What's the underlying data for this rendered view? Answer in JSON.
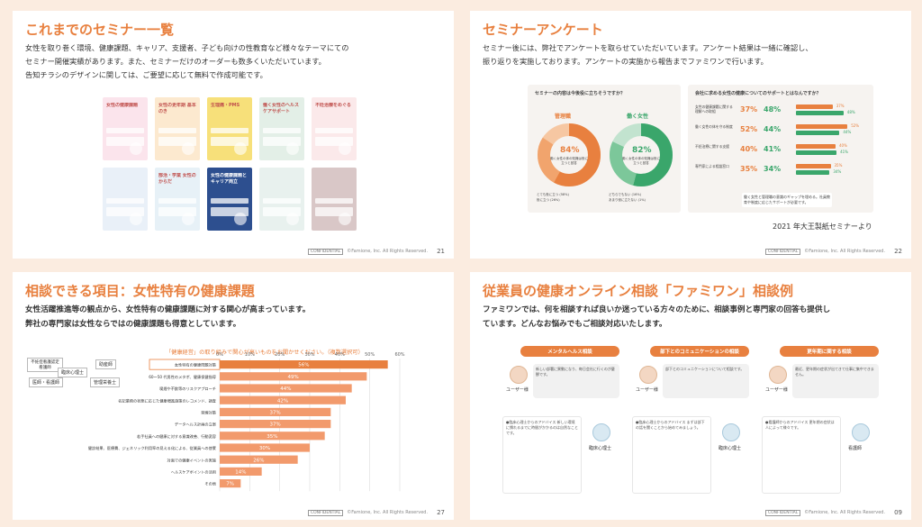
{
  "colors": {
    "accent": "#e8803f",
    "bar": "#f29a6c",
    "chart_grid": "#dddddd",
    "green": "#3aa66b",
    "background": "#fbece0"
  },
  "footer": {
    "confidential": "CONFIDENTIAL",
    "copyright": "©Famione, Inc. All Rights Reserved."
  },
  "s1": {
    "title": "これまでのセミナー一覧",
    "lines": [
      "女性を取り巻く環境、健康課題、キャリア、支援者、子ども向けの性教育など様々なテーマにての",
      "セミナー開催実績があります。また、セミナーだけのオーダーも数多くいただいています。",
      "告知チラシのデザインに関しては、ご要望に応じて無料で作成可能です。"
    ],
    "page": "21",
    "flyers": [
      {
        "title": "女性の健康課題",
        "color": "#fbe4ec"
      },
      {
        "title": "女性の更年期 基本のき",
        "color": "#fce9cf"
      },
      {
        "title": "生理痛・PMS",
        "color": "#f7e07a"
      },
      {
        "title": "働く女性のヘルスケアサポート",
        "color": "#e3efe7"
      },
      {
        "title": "不妊治療をめぐる",
        "color": "#fbe9ea"
      },
      {
        "title": "",
        "color": "#e9f0f8"
      },
      {
        "title": "部活・学業 女性のからだ",
        "color": "#e7f1f7"
      },
      {
        "title": "女性の健康課題とキャリア両立",
        "color": "#2d4f8f"
      },
      {
        "title": "",
        "color": "#e8f1ee"
      },
      {
        "title": "",
        "color": "#d9c7c7"
      }
    ]
  },
  "s2": {
    "title": "セミナーアンケート",
    "lines": [
      "セミナー後には、弊社でアンケートを取らせていただいています。アンケート結果は一緒に確認し、",
      "振り返りを実施しております。アンケートの実施から報告までファミワンで行います。"
    ],
    "left_q": "セミナーの内容は今後役に立ちそうですか？",
    "donut1": {
      "label": "管理職",
      "pct": "84%",
      "sub": "働く女性の体の知識は役に立つと回答"
    },
    "donut2": {
      "label": "働く女性",
      "pct": "82%",
      "sub": "働く女性の体の知識は役に立つと回答"
    },
    "legend": [
      "とても役に立つ (58%)",
      "役に立つ (26%)",
      "どちらでもない (16%)",
      "あまり役に立たない (1%)"
    ],
    "right_q": "会社に求める女性の健康についてのサポートとはなんですか？",
    "rows": [
      {
        "label": "女性の健康課題に関する理解への取組",
        "a": "37%",
        "b": "48%",
        "c": "37%",
        "d": "48%"
      },
      {
        "label": "働く女性の体を守る制度",
        "a": "52%",
        "b": "44%",
        "c": "52%",
        "d": "44%"
      },
      {
        "label": "不妊治療に関する支援",
        "a": "40%",
        "b": "41%",
        "c": "40%",
        "d": "41%"
      },
      {
        "label": "専門家による相談窓口",
        "a": "35%",
        "b": "34%",
        "c": "35%",
        "d": "34%"
      }
    ],
    "note": "働く女性と管理職の意識のギャップを埋める。社員教育や制度に応じたサポートが必要です。",
    "source": "2021 年大王製紙セミナーより",
    "page": "22"
  },
  "s3": {
    "title": "相談できる項目：女性特有の健康課題",
    "lines": [
      "女性活躍推進等の観点から、女性特有の健康課題に対する関心が高まっています。",
      "弊社の専門家は女性ならではの健康課題も得意としています。"
    ],
    "chart_caption": "「健康経営」の取り組みで関心が高いものをお聞かせください。（複数選択可）",
    "experts": [
      "不妊症看護認定看護師",
      "助産師",
      "臨床心理士",
      "管理栄養士",
      "医師・看護師"
    ],
    "page": "27"
  },
  "chart_data": {
    "type": "bar",
    "orientation": "horizontal",
    "title": "「健康経営」の取り組みで関心が高いものをお聞かせください。（複数選択可）",
    "categories": [
      "女性特有の健康問題対策",
      "60～50 代男性のメタボ、健康保健指導",
      "喫煙や不飲等のリスクアプローチ",
      "名記業務の状態に応じた健康増進施策のレコメンド、調査",
      "禁煙対策",
      "データヘルス計画の立案",
      "若手社員への健康に対する意識改善、行動変容",
      "健診結果、医療費、ジェネリック利用率の見える化による、従業員への啓蒙",
      "対面での健康イベントの実施",
      "ヘルスケアポイントの活用",
      "その他"
    ],
    "values": [
      56,
      49,
      44,
      42,
      37,
      37,
      35,
      30,
      26,
      14,
      7
    ],
    "xlim": [
      0,
      60
    ],
    "ticks": [
      "0%",
      "10%",
      "20%",
      "30%",
      "40%",
      "50%",
      "60%"
    ]
  },
  "s4": {
    "title": "従業員の健康オンライン相談「ファミワン」相談例",
    "lines": [
      "ファミワンでは、何を相談すれば良いか迷っている方々のために、相談事例と専門家の回答も提供し",
      "ています。どんなお悩みでもご相談対応いたします。"
    ],
    "pills": [
      "メンタルヘルス相談",
      "部下とのコミュニケーションの相談",
      "更年期に関する相談"
    ],
    "roles_user": [
      "ユーザー様",
      "ユーザー様",
      "ユーザー様"
    ],
    "roles_expert": [
      "臨床心理士",
      "臨床心理士",
      "看護師"
    ],
    "q_text": [
      "新しい部署に異動になり、毎日会社に行くのが憂鬱です。",
      "部下とのコミュニケーションについて相談です。",
      "最近、更年期の症状が出てきて仕事に集中できません。"
    ],
    "a_text": [
      "●臨床心理士からのアドバイス 新しい環境に慣れるまでに時間がかかるのは自然なことです。",
      "●臨床心理士からのアドバイス まずは部下の話を聞くことから始めてみましょう。",
      "●看護師からのアドバイス 更年期の症状は人によって様々です。"
    ],
    "page": "09"
  }
}
